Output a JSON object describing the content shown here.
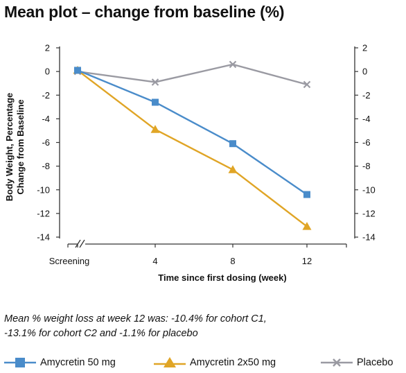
{
  "title": "Mean plot – change from baseline (%)",
  "chart_data": {
    "type": "line",
    "title": "Mean plot – change from baseline (%)",
    "xlabel": "Time since first dosing (week)",
    "ylabel": [
      "Body Weight, Percentage",
      "Change from Baseline"
    ],
    "x_categories": [
      "Screening",
      "4",
      "8",
      "12"
    ],
    "x": [
      0,
      4,
      8,
      12
    ],
    "ylim": [
      -14,
      2
    ],
    "yticks": [
      2,
      0,
      -2,
      -4,
      -6,
      -8,
      -10,
      -12,
      -14
    ],
    "ytick_labels": [
      "2",
      "0",
      "-2",
      "-4",
      "-6",
      "-8",
      "-10",
      "-12",
      "-14"
    ],
    "grid": false,
    "axis_break_on_x": true,
    "legend_position": "bottom",
    "series": [
      {
        "name": "Amycretin 50 mg",
        "color": "#4a8cca",
        "marker": "square",
        "values": [
          0.1,
          -2.6,
          -6.1,
          -10.4
        ]
      },
      {
        "name": "Amycretin 2x50 mg",
        "color": "#e0a526",
        "marker": "triangle",
        "values": [
          0.1,
          -4.9,
          -8.3,
          -13.1
        ]
      },
      {
        "name": "Placebo",
        "color": "#9a9aa2",
        "marker": "x",
        "values": [
          0.0,
          -0.9,
          0.6,
          -1.1
        ]
      }
    ]
  },
  "note": {
    "line1": "Mean % weight loss at week 12 was: -10.4% for cohort C1,",
    "line2": "-13.1% for cohort C2 and -1.1% for placebo"
  }
}
